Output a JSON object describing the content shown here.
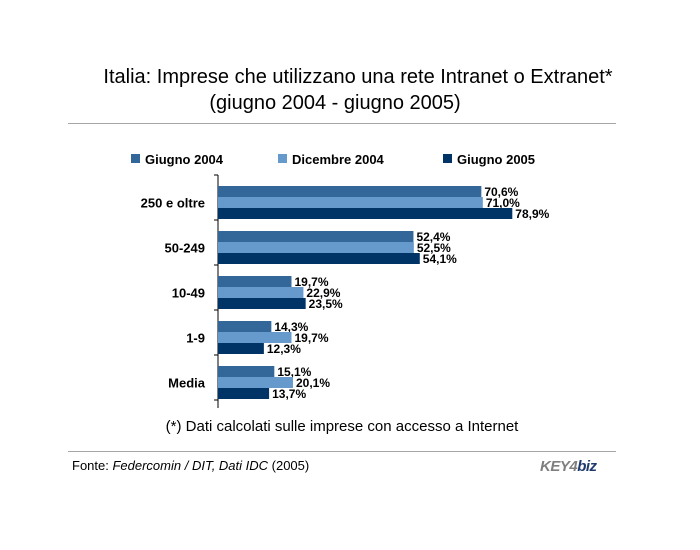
{
  "header": {
    "title_line1": "Italia: Imprese che utilizzano una rete Intranet o Extranet*",
    "title_line2": "(giugno 2004 - giugno 2005)"
  },
  "footnote": "(*) Dati calcolati sulle imprese con accesso a Internet",
  "source": {
    "prefix": "Fonte: ",
    "name": "Federcomin / DIT, Dati IDC",
    "year": " (2005)"
  },
  "logo": {
    "part1": "KEY",
    "part2": "4",
    "part3": "biz"
  },
  "chart_data": {
    "type": "bar",
    "orientation": "horizontal",
    "categories": [
      "250 e oltre",
      "50-249",
      "10-49",
      "1-9",
      "Media"
    ],
    "series": [
      {
        "name": "Giugno 2004",
        "color": "#336699",
        "values": [
          70.6,
          52.4,
          19.7,
          14.3,
          15.1
        ],
        "labels": [
          "70,6%",
          "52,4%",
          "19,7%",
          "14,3%",
          "15,1%"
        ]
      },
      {
        "name": "Dicembre 2004",
        "color": "#6699cc",
        "values": [
          71.0,
          52.5,
          22.9,
          19.7,
          20.1
        ],
        "labels": [
          "71,0%",
          "52,5%",
          "22,9%",
          "19,7%",
          "20,1%"
        ]
      },
      {
        "name": "Giugno 2005",
        "color": "#003366",
        "values": [
          78.9,
          54.1,
          23.5,
          12.3,
          13.7
        ],
        "labels": [
          "78,9%",
          "54,1%",
          "23,5%",
          "12,3%",
          "13,7%"
        ]
      }
    ],
    "xlim": [
      0,
      100
    ],
    "legend": "top",
    "grid": false
  }
}
